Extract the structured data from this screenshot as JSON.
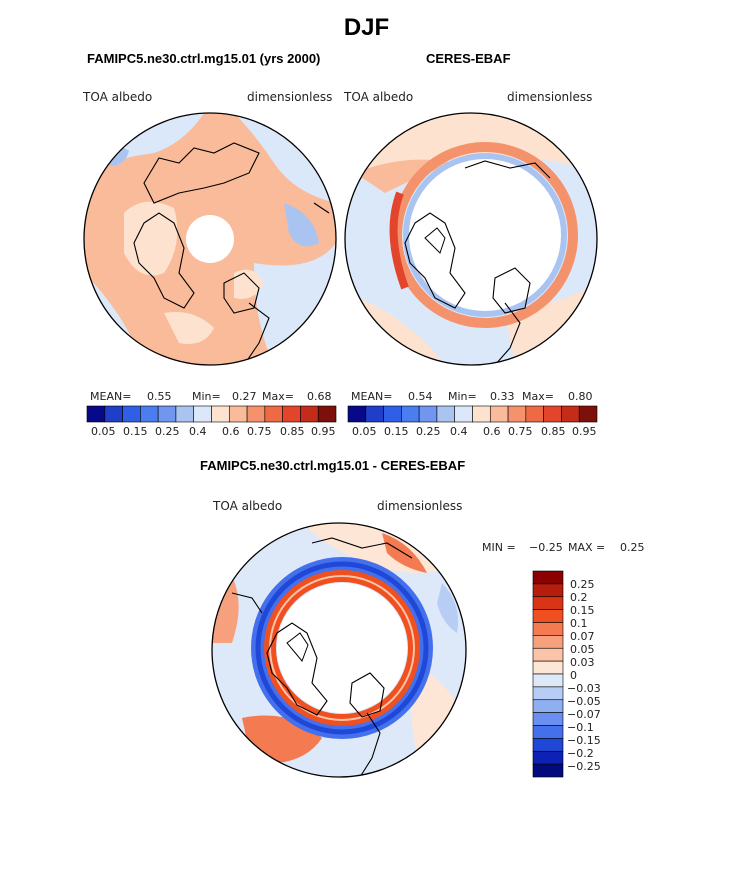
{
  "figure": {
    "title": "DJF",
    "colors": {
      "coast": "#000000",
      "missing": "#ffffff"
    }
  },
  "chart_data": [
    {
      "type": "heatmap",
      "projection": "north-polar-stereographic",
      "title": "FAMIPC5.ne30.ctrl.mg15.01 (yrs 2000)",
      "variable_label": "TOA albedo",
      "units_label": "dimensionless",
      "stats": {
        "mean_label": "MEAN=",
        "mean": "0.55",
        "min_label": "Min=",
        "min": "0.27",
        "max_label": "Max=",
        "max": "0.68"
      },
      "colorbar": {
        "orientation": "horizontal",
        "colors": [
          "#08088a",
          "#1f3fc8",
          "#2f5fe6",
          "#4a7ef0",
          "#7096f0",
          "#a9c4f0",
          "#dbe8fa",
          "#fde3cf",
          "#f9bb9a",
          "#f4926c",
          "#ee6a45",
          "#e2452b",
          "#c22c18",
          "#7d0f0c"
        ],
        "tick_labels": [
          "0.05",
          "0.15",
          "0.25",
          "0.4",
          "0.6",
          "0.75",
          "0.85",
          "0.95"
        ]
      }
    },
    {
      "type": "heatmap",
      "projection": "north-polar-stereographic",
      "title": "CERES-EBAF",
      "variable_label": "TOA albedo",
      "units_label": "dimensionless",
      "stats": {
        "mean_label": "MEAN=",
        "mean": "0.54",
        "min_label": "Min=",
        "min": "0.33",
        "max_label": "Max=",
        "max": "0.80"
      },
      "colorbar": {
        "orientation": "horizontal",
        "colors": [
          "#08088a",
          "#1f3fc8",
          "#2f5fe6",
          "#4a7ef0",
          "#7096f0",
          "#a9c4f0",
          "#dbe8fa",
          "#fde3cf",
          "#f9bb9a",
          "#f4926c",
          "#ee6a45",
          "#e2452b",
          "#c22c18",
          "#7d0f0c"
        ],
        "tick_labels": [
          "0.05",
          "0.15",
          "0.25",
          "0.4",
          "0.6",
          "0.75",
          "0.85",
          "0.95"
        ]
      }
    },
    {
      "type": "heatmap",
      "projection": "north-polar-stereographic",
      "title": "FAMIPC5.ne30.ctrl.mg15.01 - CERES-EBAF",
      "variable_label": "TOA albedo",
      "units_label": "dimensionless",
      "stats": {
        "min_label": "MIN =",
        "min": "−0.25",
        "max_label": "MAX =",
        "max": "0.25"
      },
      "colorbar": {
        "orientation": "vertical",
        "colors_top_to_bottom": [
          "#8b0000",
          "#b51d0c",
          "#d93318",
          "#f0501f",
          "#f47a52",
          "#f7a07e",
          "#fbc3a8",
          "#fde6d5",
          "#dde9f8",
          "#b7cdf3",
          "#8eaff0",
          "#6a8ff0",
          "#4470ec",
          "#2048d8",
          "#0d22b4",
          "#020a7e"
        ],
        "tick_labels": [
          "0.25",
          "0.2",
          "0.15",
          "0.1",
          "0.07",
          "0.05",
          "0.03",
          "0",
          "−0.03",
          "−0.05",
          "−0.07",
          "−0.1",
          "−0.15",
          "−0.2",
          "−0.25"
        ]
      }
    }
  ]
}
